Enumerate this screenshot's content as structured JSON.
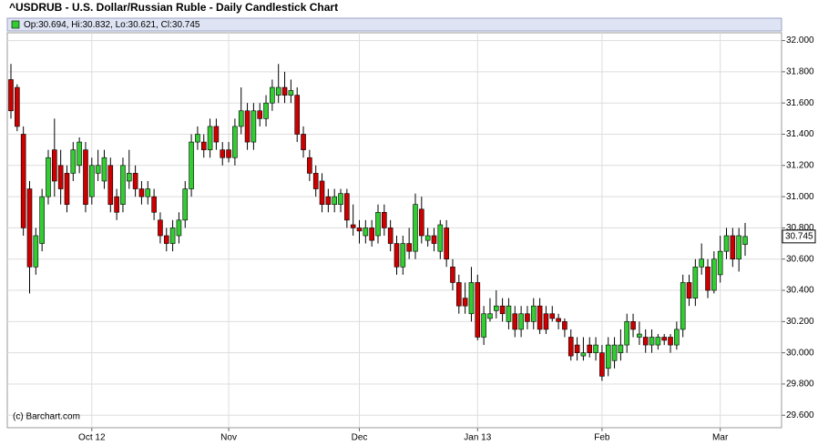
{
  "chart_data": {
    "type": "candlestick",
    "title": "^USDRUB - U.S. Dollar/Russian Ruble - Daily Candlestick Chart",
    "legend_text": "Op:30.694, Hi:30.832, Lo:30.621, Cl:30.745",
    "watermark": "(c) Barchart.com",
    "last_price": 30.745,
    "up_color": "#33cc33",
    "down_color": "#cc0000",
    "grid": true,
    "ylim": [
      29.52,
      32.05
    ],
    "yticks": [
      {
        "value": 29.6,
        "label": "29.600"
      },
      {
        "value": 29.8,
        "label": "29.800"
      },
      {
        "value": 30.0,
        "label": "30.000"
      },
      {
        "value": 30.2,
        "label": "30.200"
      },
      {
        "value": 30.4,
        "label": "30.400"
      },
      {
        "value": 30.6,
        "label": "30.600"
      },
      {
        "value": 30.8,
        "label": "30.800"
      },
      {
        "value": 31.0,
        "label": "31.000"
      },
      {
        "value": 31.2,
        "label": "31.200"
      },
      {
        "value": 31.4,
        "label": "31.400"
      },
      {
        "value": 31.6,
        "label": "31.600"
      },
      {
        "value": 31.8,
        "label": "31.800"
      },
      {
        "value": 32.0,
        "label": "32.000"
      }
    ],
    "categories": [
      null,
      null,
      null,
      null,
      null,
      null,
      null,
      null,
      null,
      null,
      null,
      null,
      null,
      "Oct 12",
      null,
      null,
      null,
      null,
      null,
      null,
      null,
      null,
      null,
      null,
      null,
      null,
      null,
      null,
      null,
      null,
      null,
      null,
      null,
      null,
      null,
      "Nov",
      null,
      null,
      null,
      null,
      null,
      null,
      null,
      null,
      null,
      null,
      null,
      null,
      null,
      null,
      null,
      null,
      null,
      null,
      null,
      null,
      "Dec",
      null,
      null,
      null,
      null,
      null,
      null,
      null,
      null,
      null,
      null,
      null,
      null,
      null,
      null,
      null,
      null,
      null,
      null,
      "Jan 13",
      null,
      null,
      null,
      null,
      null,
      null,
      null,
      null,
      null,
      null,
      null,
      null,
      null,
      null,
      null,
      null,
      null,
      null,
      null,
      "Feb",
      null,
      null,
      null,
      null,
      null,
      null,
      null,
      null,
      null,
      null,
      null,
      null,
      null,
      null,
      null,
      null,
      null,
      null,
      "Mar",
      null,
      null,
      null,
      null
    ],
    "open": [
      31.75,
      31.7,
      31.4,
      31.05,
      30.55,
      30.7,
      31.0,
      31.3,
      31.2,
      31.15,
      31.15,
      31.2,
      31.3,
      31.0,
      31.15,
      31.1,
      31.2,
      31.0,
      30.95,
      31.1,
      31.15,
      31.05,
      31.0,
      31.0,
      30.85,
      30.75,
      30.7,
      30.75,
      30.85,
      31.05,
      31.35,
      31.35,
      31.3,
      31.45,
      31.3,
      31.3,
      31.25,
      31.45,
      31.55,
      31.35,
      31.55,
      31.5,
      31.6,
      31.65,
      31.7,
      31.65,
      31.65,
      31.4,
      31.25,
      31.15,
      31.1,
      31.0,
      30.95,
      30.95,
      31.02,
      30.82,
      30.8,
      30.75,
      30.8,
      30.75,
      30.9,
      30.8,
      30.7,
      30.55,
      30.7,
      30.65,
      30.92,
      30.72,
      30.75,
      30.65,
      30.8,
      30.55,
      30.45,
      30.35,
      30.25,
      30.45,
      30.1,
      30.22,
      30.27,
      30.3,
      30.2,
      30.25,
      30.15,
      30.25,
      30.2,
      30.3,
      30.25,
      30.25,
      30.22,
      30.2,
      30.1,
      30.05,
      29.98,
      30.05,
      30.0,
      30.0,
      29.9,
      29.95,
      30.0,
      30.05,
      30.2,
      30.1,
      30.1,
      30.05,
      30.05,
      30.1,
      30.1,
      30.05,
      30.15,
      30.45,
      30.35,
      30.55,
      30.55,
      30.4,
      30.5,
      30.65,
      30.75,
      30.6,
      30.694
    ],
    "high": [
      31.85,
      31.72,
      31.45,
      31.1,
      30.8,
      31.05,
      31.3,
      31.5,
      31.3,
      31.2,
      31.35,
      31.38,
      31.35,
      31.25,
      31.3,
      31.3,
      31.25,
      31.05,
      31.25,
      31.3,
      31.2,
      31.1,
      31.1,
      31.05,
      30.9,
      30.8,
      30.85,
      30.9,
      31.1,
      31.4,
      31.45,
      31.4,
      31.5,
      31.5,
      31.35,
      31.35,
      31.5,
      31.7,
      31.6,
      31.6,
      31.6,
      31.65,
      31.75,
      31.85,
      31.8,
      31.75,
      31.7,
      31.45,
      31.3,
      31.2,
      31.15,
      31.05,
      31.05,
      31.05,
      31.05,
      30.95,
      30.85,
      30.85,
      30.85,
      30.95,
      30.95,
      30.85,
      30.75,
      30.75,
      30.8,
      31.02,
      31.0,
      30.8,
      30.8,
      30.85,
      30.85,
      30.6,
      30.5,
      30.45,
      30.55,
      30.5,
      30.3,
      30.35,
      30.4,
      30.35,
      30.35,
      30.3,
      30.3,
      30.3,
      30.35,
      30.35,
      30.3,
      30.3,
      30.25,
      30.22,
      30.15,
      30.1,
      30.1,
      30.1,
      30.1,
      30.05,
      30.1,
      30.1,
      30.15,
      30.25,
      30.25,
      30.2,
      30.15,
      30.15,
      30.12,
      30.12,
      30.12,
      30.2,
      30.5,
      30.5,
      30.6,
      30.7,
      30.6,
      30.65,
      30.75,
      30.8,
      30.8,
      30.8,
      30.832
    ],
    "low": [
      31.5,
      31.42,
      30.75,
      30.38,
      30.5,
      30.65,
      30.95,
      31.0,
      30.95,
      30.9,
      31.1,
      31.15,
      30.9,
      30.95,
      31.1,
      31.05,
      30.9,
      30.85,
      30.9,
      31.05,
      31.0,
      30.95,
      30.95,
      30.85,
      30.7,
      30.65,
      30.65,
      30.7,
      30.8,
      31.0,
      31.3,
      31.25,
      31.25,
      31.3,
      31.2,
      31.22,
      31.2,
      31.4,
      31.3,
      31.3,
      31.45,
      31.45,
      31.55,
      31.6,
      31.6,
      31.6,
      31.35,
      31.25,
      31.1,
      31.0,
      30.9,
      30.9,
      30.9,
      30.9,
      30.8,
      30.75,
      30.7,
      30.7,
      30.68,
      30.7,
      30.75,
      30.65,
      30.5,
      30.5,
      30.6,
      30.6,
      30.7,
      30.68,
      30.65,
      30.6,
      30.55,
      30.4,
      30.25,
      30.25,
      30.2,
      30.08,
      30.05,
      30.2,
      30.22,
      30.2,
      30.15,
      30.1,
      30.1,
      30.15,
      30.15,
      30.12,
      30.12,
      30.2,
      30.15,
      30.1,
      29.95,
      29.95,
      29.95,
      29.97,
      29.95,
      29.82,
      29.85,
      29.9,
      29.95,
      30.0,
      30.1,
      30.05,
      30.0,
      30.0,
      30.02,
      30.05,
      30.0,
      30.02,
      30.1,
      30.3,
      30.3,
      30.5,
      30.35,
      30.38,
      30.45,
      30.6,
      30.55,
      30.52,
      30.621
    ],
    "close": [
      31.55,
      31.45,
      30.8,
      30.55,
      30.75,
      31.0,
      31.25,
      31.1,
      31.05,
      30.95,
      31.3,
      31.35,
      30.95,
      31.2,
      31.2,
      31.25,
      30.95,
      30.9,
      31.2,
      31.15,
      31.05,
      31.0,
      31.05,
      30.9,
      30.75,
      30.7,
      30.8,
      30.85,
      31.05,
      31.35,
      31.4,
      31.3,
      31.45,
      31.35,
      31.25,
      31.25,
      31.45,
      31.55,
      31.35,
      31.55,
      31.5,
      31.6,
      31.7,
      31.7,
      31.65,
      31.68,
      31.4,
      31.3,
      31.15,
      31.05,
      30.95,
      30.95,
      31.0,
      31.02,
      30.85,
      30.8,
      30.78,
      30.8,
      30.72,
      30.9,
      30.8,
      30.7,
      30.55,
      30.7,
      30.65,
      30.95,
      30.75,
      30.75,
      30.7,
      30.82,
      30.6,
      30.45,
      30.3,
      30.3,
      30.45,
      30.1,
      30.25,
      30.25,
      30.3,
      30.25,
      30.3,
      30.15,
      30.25,
      30.2,
      30.3,
      30.15,
      30.15,
      30.22,
      30.2,
      30.15,
      29.98,
      30.0,
      30.0,
      30.0,
      30.05,
      29.85,
      30.05,
      30.05,
      30.05,
      30.2,
      30.15,
      30.12,
      30.05,
      30.1,
      30.1,
      30.08,
      30.05,
      30.15,
      30.45,
      30.35,
      30.55,
      30.6,
      30.4,
      30.6,
      30.65,
      30.75,
      30.6,
      30.75,
      30.745
    ]
  }
}
